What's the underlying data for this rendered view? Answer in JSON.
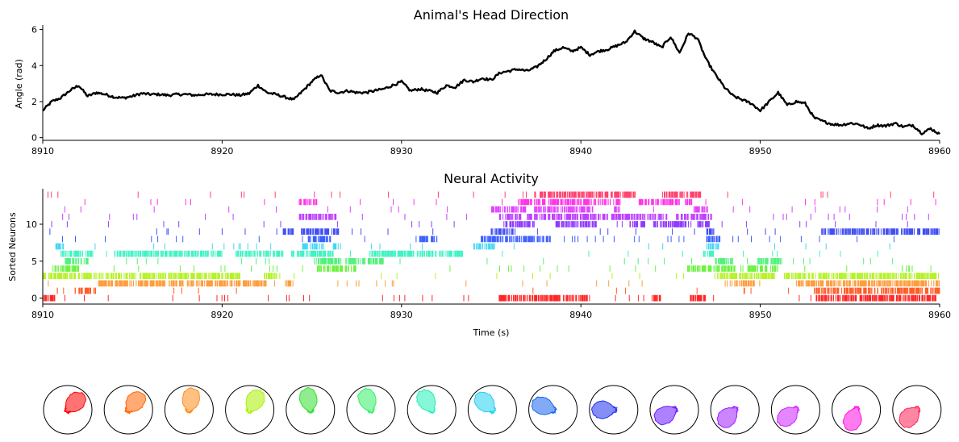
{
  "chart_data": [
    {
      "type": "line",
      "title": "Animal's Head Direction",
      "xlabel": "",
      "ylabel": "Angle (rad)",
      "xlim": [
        8910,
        8960
      ],
      "ylim": [
        -0.15,
        6.25
      ],
      "x_ticks": [
        8910,
        8920,
        8930,
        8940,
        8950,
        8960
      ],
      "y_ticks": [
        0,
        2,
        4,
        6
      ],
      "color": "#000000",
      "series": [
        {
          "x": [
            8910,
            8910.5,
            8911,
            8911.5,
            8912,
            8912.5,
            8913,
            8913.5,
            8914,
            8914.5,
            8915,
            8915.5,
            8916,
            8916.5,
            8917,
            8917.5,
            8918,
            8918.5,
            8919,
            8919.5,
            8920,
            8920.5,
            8921,
            8921.5,
            8922,
            8922.5,
            8923,
            8923.5,
            8924,
            8924.5,
            8925,
            8925.5,
            8926,
            8926.5,
            8927,
            8927.5,
            8928,
            8928.5,
            8929,
            8929.5,
            8930,
            8930.5,
            8931,
            8931.5,
            8932,
            8932.5,
            8933,
            8933.5,
            8934,
            8934.5,
            8935,
            8935.5,
            8936,
            8936.5,
            8937,
            8937.5,
            8938,
            8938.5,
            8939,
            8939.5,
            8940,
            8940.5,
            8941,
            8941.5,
            8942,
            8942.5,
            8943,
            8943.5,
            8944,
            8944.5,
            8945,
            8945.5,
            8946,
            8946.5,
            8947,
            8947.5,
            8948,
            8948.5,
            8949,
            8949.5,
            8950,
            8950.5,
            8951,
            8951.5,
            8952,
            8952.5,
            8953,
            8953.5,
            8954,
            8954.5,
            8955,
            8955.5,
            8956,
            8956.5,
            8957,
            8957.5,
            8958,
            8958.5,
            8959,
            8959.5,
            8960
          ],
          "y": [
            1.5,
            2.0,
            2.2,
            2.6,
            2.9,
            2.3,
            2.5,
            2.4,
            2.25,
            2.2,
            2.3,
            2.45,
            2.4,
            2.4,
            2.35,
            2.4,
            2.4,
            2.35,
            2.4,
            2.4,
            2.4,
            2.4,
            2.35,
            2.45,
            2.9,
            2.5,
            2.4,
            2.25,
            2.1,
            2.6,
            3.1,
            3.5,
            2.6,
            2.5,
            2.6,
            2.5,
            2.5,
            2.6,
            2.7,
            2.9,
            3.1,
            2.6,
            2.7,
            2.6,
            2.5,
            2.9,
            2.8,
            3.2,
            3.1,
            3.3,
            3.2,
            3.6,
            3.7,
            3.8,
            3.7,
            3.9,
            4.3,
            4.8,
            5.0,
            4.8,
            5.0,
            4.6,
            4.8,
            4.9,
            5.1,
            5.3,
            5.9,
            5.5,
            5.3,
            5.0,
            5.6,
            4.7,
            5.8,
            5.5,
            4.3,
            3.5,
            2.8,
            2.3,
            2.1,
            1.9,
            1.5,
            2.0,
            2.5,
            1.8,
            2.0,
            1.9,
            1.1,
            0.9,
            0.75,
            0.7,
            0.8,
            0.75,
            0.5,
            0.7,
            0.65,
            0.8,
            0.6,
            0.7,
            0.25,
            0.5,
            0.2
          ]
        }
      ]
    },
    {
      "type": "scatter",
      "title": "Neural Activity",
      "xlabel": "Time (s)",
      "ylabel": "Sorted Neurons",
      "xlim": [
        8910,
        8960
      ],
      "ylim": [
        -0.8,
        14.8
      ],
      "x_ticks": [
        8910,
        8920,
        8930,
        8940,
        8950,
        8960
      ],
      "y_ticks": [
        0,
        5,
        10
      ],
      "series": [
        {
          "name": "0",
          "color": "#ff0000",
          "bursts": [
            [
              8910.0,
              8910.7
            ],
            [
              8935.4,
              8940.5
            ],
            [
              8943.9,
              8944.5
            ],
            [
              8946.1,
              8947.0
            ],
            [
              8953.1,
              8960.0
            ]
          ]
        },
        {
          "name": "1",
          "color": "#ff4000",
          "bursts": [
            [
              8912.0,
              8913.0
            ],
            [
              8953.0,
              8960.0
            ]
          ]
        },
        {
          "name": "2",
          "color": "#ff8c1a",
          "bursts": [
            [
              8913.1,
              8922.5
            ],
            [
              8923.6,
              8924.0
            ],
            [
              8948.3,
              8949.7
            ],
            [
              8952.0,
              8960.0
            ]
          ]
        },
        {
          "name": "3",
          "color": "#a8f000",
          "bursts": [
            [
              8910.0,
              8921.0
            ],
            [
              8922.3,
              8923.0
            ],
            [
              8947.6,
              8950.8
            ],
            [
              8951.3,
              8960.0
            ]
          ]
        },
        {
          "name": "4",
          "color": "#55ee22",
          "bursts": [
            [
              8910.5,
              8912.0
            ],
            [
              8925.3,
              8927.5
            ],
            [
              8945.8,
              8948.6
            ],
            [
              8948.9,
              8950.4
            ],
            [
              8950.6,
              8951.0
            ]
          ]
        },
        {
          "name": "5",
          "color": "#33ee66",
          "bursts": [
            [
              8911.3,
              8912.6
            ],
            [
              8925.0,
              8929.0
            ],
            [
              8947.5,
              8948.5
            ],
            [
              8949.8,
              8951.2
            ]
          ]
        },
        {
          "name": "6",
          "color": "#22f0b8",
          "bursts": [
            [
              8911.0,
              8912.8
            ],
            [
              8914.0,
              8920.0
            ],
            [
              8920.7,
              8923.4
            ],
            [
              8923.8,
              8926.2
            ],
            [
              8928.3,
              8933.5
            ],
            [
              8946.8,
              8947.5
            ]
          ]
        },
        {
          "name": "7",
          "color": "#22d0f0",
          "bursts": [
            [
              8910.7,
              8911.2
            ],
            [
              8924.4,
              8925.7
            ],
            [
              8926.2,
              8926.6
            ],
            [
              8934.0,
              8935.2
            ],
            [
              8947.1,
              8947.7
            ]
          ]
        },
        {
          "name": "8",
          "color": "#1a44ff",
          "bursts": [
            [
              8924.8,
              8926.1
            ],
            [
              8931.0,
              8932.0
            ],
            [
              8934.4,
              8937.4
            ],
            [
              8937.5,
              8938.3
            ],
            [
              8947.0,
              8947.8
            ]
          ]
        },
        {
          "name": "9",
          "color": "#2030f0",
          "bursts": [
            [
              8923.4,
              8924.0
            ],
            [
              8924.4,
              8926.5
            ],
            [
              8935.0,
              8936.4
            ],
            [
              8947.0,
              8947.5
            ],
            [
              8953.4,
              8960.0
            ]
          ]
        },
        {
          "name": "10",
          "color": "#7a1aff",
          "bursts": [
            [
              8935.7,
              8937.4
            ],
            [
              8938.6,
              8941.0
            ],
            [
              8942.7,
              8943.6
            ],
            [
              8944.0,
              8946.0
            ],
            [
              8946.5,
              8947.2
            ]
          ]
        },
        {
          "name": "11",
          "color": "#b020ff",
          "bursts": [
            [
              8924.3,
              8926.4
            ],
            [
              8935.4,
              8936.7
            ],
            [
              8937.0,
              8941.5
            ],
            [
              8941.7,
              8944.8
            ],
            [
              8945.3,
              8947.3
            ]
          ]
        },
        {
          "name": "12",
          "color": "#dd22ff",
          "bursts": [
            [
              8935.0,
              8937.0
            ],
            [
              8937.4,
              8940.7
            ],
            [
              8941.8,
              8942.2
            ],
            [
              8946.3,
              8947.0
            ]
          ]
        },
        {
          "name": "13",
          "color": "#ff10e0",
          "bursts": [
            [
              8924.3,
              8925.3
            ],
            [
              8936.5,
              8938.0
            ],
            [
              8938.2,
              8942.2
            ],
            [
              8943.2,
              8945.5
            ],
            [
              8945.8,
              8946.2
            ]
          ]
        },
        {
          "name": "14",
          "color": "#ff2255",
          "bursts": [
            [
              8937.4,
              8943.1
            ],
            [
              8944.5,
              8946.7
            ]
          ]
        }
      ]
    },
    {
      "type": "polar",
      "title": "",
      "note_colors_by_neuron": [
        "#ff0000",
        "#ff6600",
        "#ff8c1a",
        "#a8f000",
        "#33dd33",
        "#33ee66",
        "#22f0b8",
        "#22d0f0",
        "#1a66ee",
        "#2030f0",
        "#6a1aff",
        "#a020ff",
        "#cc22ff",
        "#ff10e0",
        "#ff2255"
      ],
      "preferred_angle_deg": [
        45,
        50,
        80,
        60,
        100,
        110,
        120,
        135,
        160,
        180,
        210,
        225,
        220,
        250,
        225
      ]
    }
  ]
}
